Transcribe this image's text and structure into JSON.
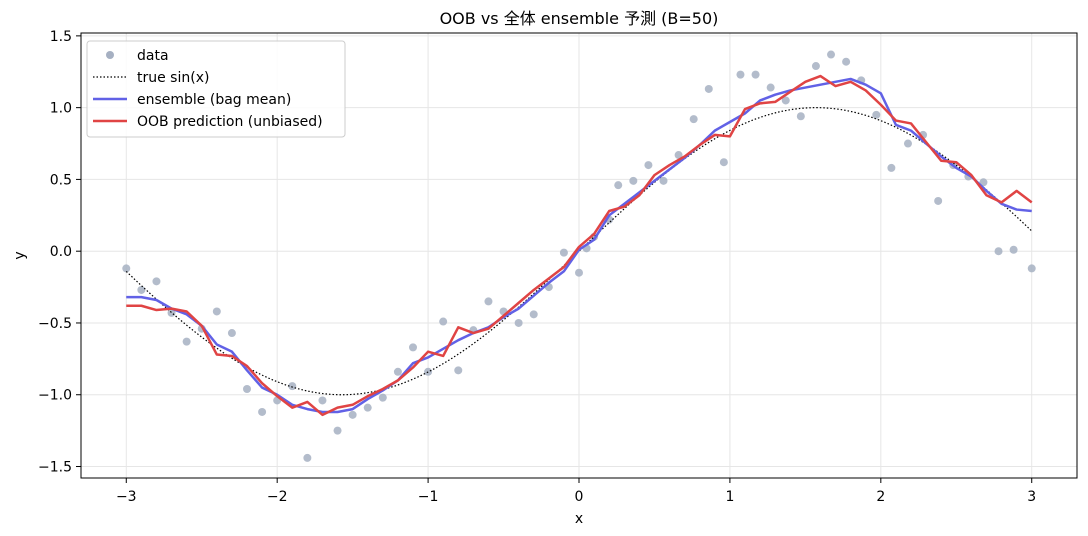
{
  "chart_data": {
    "type": "line",
    "title": "OOB vs 全体 ensemble 予測 (B=50)",
    "xlabel": "x",
    "ylabel": "y",
    "xlim": [
      -3.3,
      3.3
    ],
    "ylim": [
      -1.58,
      1.52
    ],
    "xticks": [
      -3,
      -2,
      -1,
      0,
      1,
      2,
      3
    ],
    "xtick_labels": [
      "−3",
      "−2",
      "−1",
      "0",
      "1",
      "2",
      "3"
    ],
    "yticks": [
      -1.5,
      -1.0,
      -0.5,
      0.0,
      0.5,
      1.0,
      1.5
    ],
    "ytick_labels": [
      "−1.5",
      "−1.0",
      "−0.5",
      "0.0",
      "0.5",
      "1.0",
      "1.5"
    ],
    "grid": true,
    "legend_position": "top-left",
    "colors": {
      "data": "#a6b0c2",
      "true": "#000000",
      "ensemble": "#6161e6",
      "oob": "#e04444"
    },
    "series": [
      {
        "name": "data",
        "kind": "scatter",
        "x": [
          -3.0,
          -2.9,
          -2.8,
          -2.7,
          -2.6,
          -2.5,
          -2.4,
          -2.3,
          -2.2,
          -2.1,
          -2.0,
          -1.9,
          -1.8,
          -1.7,
          -1.6,
          -1.5,
          -1.4,
          -1.3,
          -1.2,
          -1.1,
          -1.0,
          -0.9,
          -0.8,
          -0.7,
          -0.6,
          -0.5,
          -0.4,
          -0.3,
          -0.2,
          -0.1,
          0.0,
          0.05,
          0.1,
          0.2,
          0.26,
          0.36,
          0.46,
          0.56,
          0.66,
          0.76,
          0.86,
          0.96,
          1.07,
          1.17,
          1.27,
          1.37,
          1.47,
          1.57,
          1.67,
          1.77,
          1.87,
          1.97,
          2.07,
          2.18,
          2.28,
          2.38,
          2.48,
          2.58,
          2.68,
          2.78,
          2.88,
          3.0
        ],
        "y": [
          -0.12,
          -0.27,
          -0.21,
          -0.43,
          -0.63,
          -0.54,
          -0.42,
          -0.57,
          -0.96,
          -1.12,
          -1.04,
          -0.94,
          -1.44,
          -1.04,
          -1.25,
          -1.14,
          -1.09,
          -1.02,
          -0.84,
          -0.67,
          -0.84,
          -0.49,
          -0.83,
          -0.55,
          -0.35,
          -0.42,
          -0.5,
          -0.44,
          -0.25,
          -0.01,
          -0.15,
          0.02,
          0.1,
          0.22,
          0.46,
          0.49,
          0.6,
          0.49,
          0.67,
          0.92,
          1.13,
          0.62,
          1.23,
          1.23,
          1.14,
          1.05,
          0.94,
          1.29,
          1.37,
          1.32,
          1.19,
          0.95,
          0.58,
          0.75,
          0.81,
          0.35,
          0.6,
          0.52,
          0.48,
          0.0,
          0.01,
          -0.12
        ]
      },
      {
        "name": "true sin(x)",
        "kind": "function",
        "x_range": [
          -3.0,
          3.0
        ]
      },
      {
        "name": "ensemble (bag mean)",
        "kind": "line",
        "x": [
          -3.0,
          -2.9,
          -2.8,
          -2.7,
          -2.6,
          -2.5,
          -2.4,
          -2.3,
          -2.2,
          -2.1,
          -2.0,
          -1.9,
          -1.8,
          -1.7,
          -1.6,
          -1.5,
          -1.4,
          -1.3,
          -1.2,
          -1.1,
          -1.0,
          -0.9,
          -0.8,
          -0.7,
          -0.6,
          -0.5,
          -0.4,
          -0.3,
          -0.2,
          -0.1,
          0.0,
          0.1,
          0.2,
          0.3,
          0.4,
          0.5,
          0.6,
          0.7,
          0.8,
          0.9,
          1.0,
          1.1,
          1.2,
          1.3,
          1.4,
          1.5,
          1.6,
          1.7,
          1.8,
          1.9,
          2.0,
          2.1,
          2.2,
          2.3,
          2.4,
          2.5,
          2.6,
          2.7,
          2.8,
          2.9,
          3.0
        ],
        "y": [
          -0.32,
          -0.32,
          -0.34,
          -0.4,
          -0.44,
          -0.52,
          -0.65,
          -0.7,
          -0.83,
          -0.95,
          -1.0,
          -1.07,
          -1.1,
          -1.12,
          -1.12,
          -1.1,
          -1.03,
          -0.97,
          -0.9,
          -0.78,
          -0.74,
          -0.68,
          -0.62,
          -0.57,
          -0.53,
          -0.46,
          -0.4,
          -0.31,
          -0.22,
          -0.14,
          0.01,
          0.08,
          0.25,
          0.33,
          0.41,
          0.49,
          0.57,
          0.65,
          0.74,
          0.84,
          0.9,
          0.96,
          1.05,
          1.09,
          1.12,
          1.14,
          1.16,
          1.18,
          1.2,
          1.16,
          1.1,
          0.88,
          0.84,
          0.75,
          0.66,
          0.58,
          0.52,
          0.42,
          0.33,
          0.29,
          0.28
        ]
      },
      {
        "name": "OOB prediction (unbiased)",
        "kind": "line",
        "x": [
          -3.0,
          -2.9,
          -2.8,
          -2.7,
          -2.6,
          -2.5,
          -2.4,
          -2.3,
          -2.2,
          -2.1,
          -2.0,
          -1.9,
          -1.8,
          -1.7,
          -1.6,
          -1.5,
          -1.4,
          -1.3,
          -1.2,
          -1.1,
          -1.0,
          -0.9,
          -0.8,
          -0.7,
          -0.6,
          -0.5,
          -0.4,
          -0.3,
          -0.2,
          -0.1,
          0.0,
          0.1,
          0.2,
          0.3,
          0.4,
          0.5,
          0.6,
          0.7,
          0.8,
          0.9,
          1.0,
          1.1,
          1.2,
          1.3,
          1.4,
          1.5,
          1.6,
          1.7,
          1.8,
          1.9,
          2.0,
          2.1,
          2.2,
          2.3,
          2.4,
          2.5,
          2.6,
          2.7,
          2.8,
          2.9,
          3.0
        ],
        "y": [
          -0.38,
          -0.38,
          -0.41,
          -0.4,
          -0.42,
          -0.52,
          -0.72,
          -0.73,
          -0.8,
          -0.92,
          -1.01,
          -1.09,
          -1.05,
          -1.14,
          -1.09,
          -1.07,
          -1.01,
          -0.96,
          -0.9,
          -0.81,
          -0.7,
          -0.73,
          -0.53,
          -0.57,
          -0.54,
          -0.45,
          -0.36,
          -0.27,
          -0.19,
          -0.11,
          0.03,
          0.12,
          0.28,
          0.31,
          0.39,
          0.53,
          0.6,
          0.66,
          0.74,
          0.81,
          0.8,
          0.99,
          1.03,
          1.04,
          1.11,
          1.18,
          1.22,
          1.15,
          1.18,
          1.12,
          1.02,
          0.91,
          0.89,
          0.76,
          0.63,
          0.62,
          0.53,
          0.39,
          0.34,
          0.42,
          0.34
        ]
      }
    ]
  }
}
